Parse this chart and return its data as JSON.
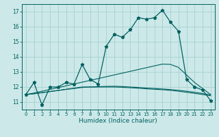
{
  "xlabel": "Humidex (Indice chaleur)",
  "background_color": "#cce8e8",
  "grid_color": "#aad4d4",
  "line_color": "#006060",
  "xlim": [
    -0.5,
    23.5
  ],
  "ylim": [
    10.5,
    17.5
  ],
  "yticks": [
    11,
    12,
    13,
    14,
    15,
    16,
    17
  ],
  "xticks": [
    0,
    1,
    2,
    3,
    4,
    5,
    6,
    7,
    8,
    9,
    10,
    11,
    12,
    13,
    14,
    15,
    16,
    17,
    18,
    19,
    20,
    21,
    22,
    23
  ],
  "main_line": [
    11.5,
    12.3,
    10.8,
    12.0,
    12.0,
    12.3,
    12.2,
    13.5,
    12.5,
    12.2,
    14.7,
    15.5,
    15.3,
    15.8,
    16.6,
    16.5,
    16.6,
    17.1,
    16.3,
    15.7,
    12.5,
    12.0,
    11.8,
    11.1
  ],
  "trend1": [
    11.5,
    11.6,
    11.72,
    11.84,
    11.96,
    12.08,
    12.2,
    12.32,
    12.44,
    12.56,
    12.68,
    12.8,
    12.92,
    13.04,
    13.16,
    13.28,
    13.4,
    13.52,
    13.5,
    13.3,
    12.8,
    12.3,
    11.9,
    11.5
  ],
  "trend2": [
    11.5,
    11.55,
    11.62,
    11.7,
    11.77,
    11.85,
    11.92,
    12.0,
    12.0,
    12.0,
    12.0,
    12.0,
    11.98,
    11.95,
    11.92,
    11.88,
    11.85,
    11.82,
    11.78,
    11.72,
    11.65,
    11.58,
    11.5,
    11.42
  ],
  "trend3": [
    11.5,
    11.56,
    11.63,
    11.7,
    11.77,
    11.84,
    11.9,
    11.97,
    12.0,
    12.02,
    12.04,
    12.05,
    12.03,
    12.0,
    11.97,
    11.93,
    11.9,
    11.87,
    11.83,
    11.78,
    11.72,
    11.65,
    11.57,
    11.48
  ]
}
